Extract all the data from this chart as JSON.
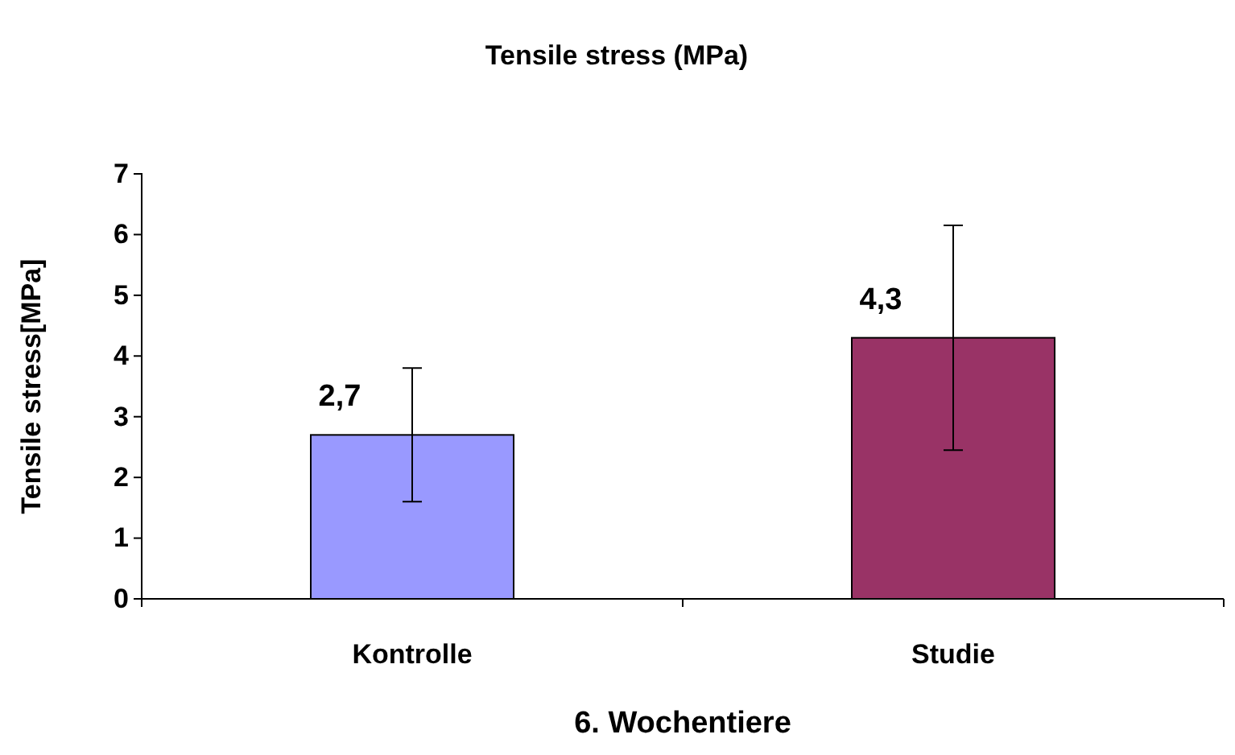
{
  "chart_data": {
    "type": "bar",
    "title": "Tensile stress (MPa)",
    "xlabel": "6. Wochentiere",
    "ylabel": "Tensile stress[MPa]",
    "categories": [
      "Kontrolle",
      "Studie"
    ],
    "values": [
      2.7,
      4.3
    ],
    "colors": [
      "#9999ff",
      "#993366"
    ],
    "errors": [
      [
        1.6,
        3.8
      ],
      [
        2.45,
        6.15
      ]
    ],
    "value_labels": [
      "2,7",
      "4,3"
    ],
    "ylim": [
      0,
      7
    ],
    "yticks": [
      0,
      1,
      2,
      3,
      4,
      5,
      6,
      7
    ],
    "grid": false
  }
}
